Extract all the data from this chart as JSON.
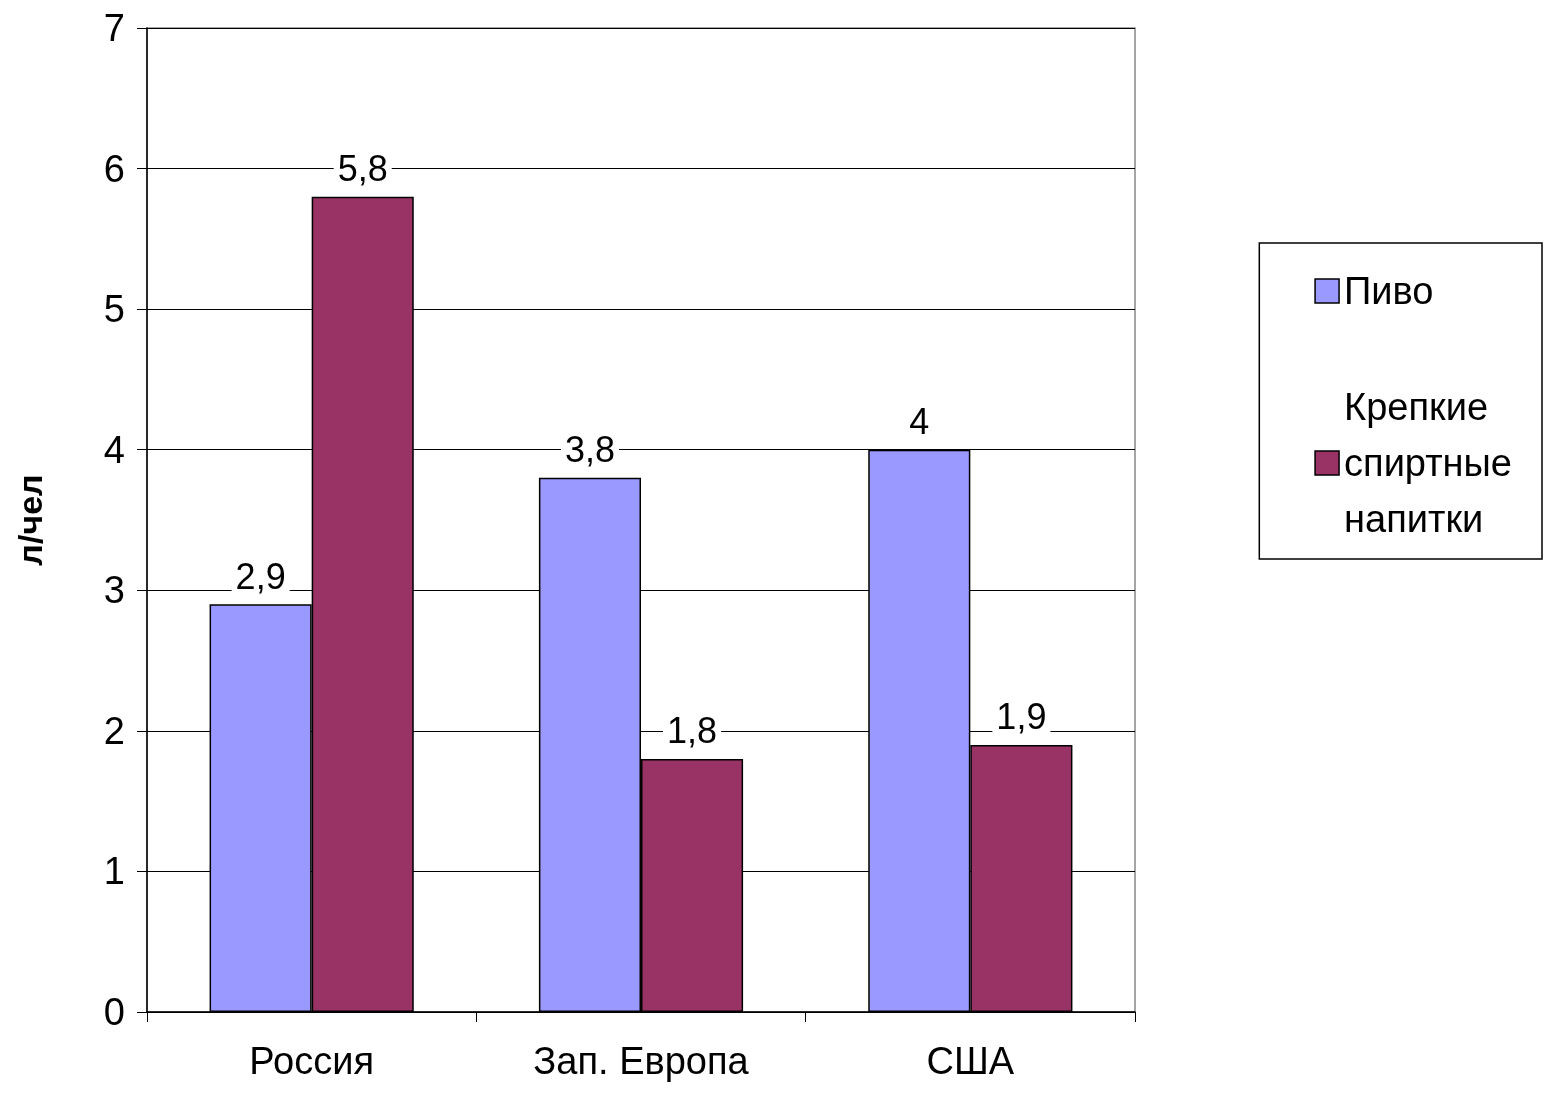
{
  "chart_data": {
    "type": "bar",
    "ylabel": "л/чел",
    "categories": [
      "Россия",
      "Зап. Европа",
      "США"
    ],
    "series": [
      {
        "name": "Пиво",
        "color": "#9999ff",
        "values": [
          2.9,
          3.8,
          4
        ],
        "value_labels": [
          "2,9",
          "3,8",
          "4"
        ]
      },
      {
        "name": "Крепкие спиртные напитки",
        "color": "#993366",
        "values": [
          5.8,
          1.8,
          1.9
        ],
        "value_labels": [
          "5,8",
          "1,8",
          "1,9"
        ]
      }
    ],
    "ylim": [
      0,
      7
    ],
    "yticks": [
      0,
      1,
      2,
      3,
      4,
      5,
      6,
      7
    ],
    "grid": "y",
    "legend": "right"
  }
}
